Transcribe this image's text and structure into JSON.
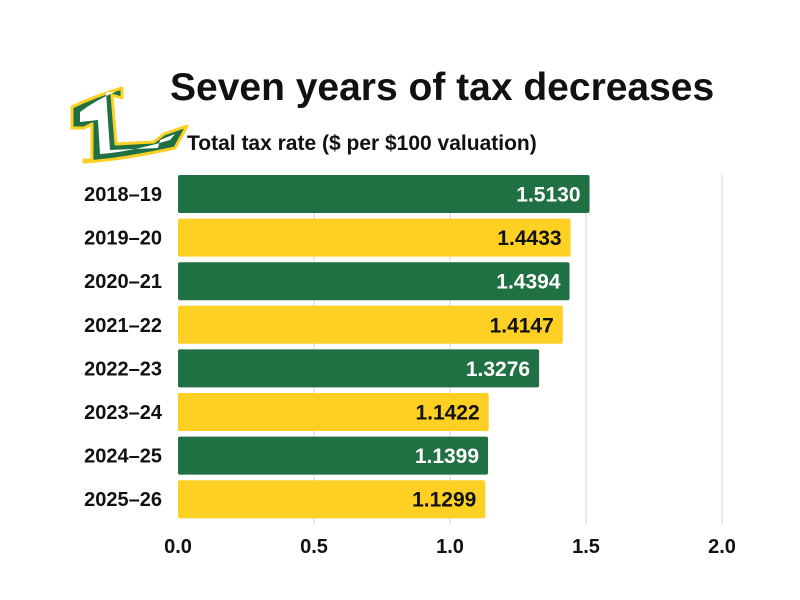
{
  "colors": {
    "green": "#1f7042",
    "yellow": "#fdd023",
    "grid": "#e2e2e2",
    "text_on_green": "#ffffff",
    "text_on_yellow": "#111111"
  },
  "chart_data": {
    "type": "bar",
    "orientation": "horizontal",
    "title": "Seven years of tax decreases",
    "subtitle": "Total tax rate ($ per $100 valuation)",
    "categories": [
      "2018–19",
      "2019–20",
      "2020–21",
      "2021–22",
      "2022–23",
      "2023–24",
      "2024–25",
      "2025–26"
    ],
    "values": [
      1.513,
      1.4433,
      1.4394,
      1.4147,
      1.3276,
      1.1422,
      1.1399,
      1.1299
    ],
    "data_labels": [
      "1.5130",
      "1.4433",
      "1.4394",
      "1.4147",
      "1.3276",
      "1.1422",
      "1.1399",
      "1.1299"
    ],
    "bar_colors": [
      "green",
      "yellow",
      "green",
      "yellow",
      "green",
      "yellow",
      "green",
      "yellow"
    ],
    "xlim": [
      0,
      2.0
    ],
    "xticks": [
      0,
      0.5,
      1.0,
      1.5,
      2.0
    ],
    "xtick_labels": [
      "0.0",
      "0.5",
      "1.0",
      "1.5",
      "2.0"
    ],
    "xlabel": "",
    "ylabel": "",
    "grid": true,
    "legend": "none"
  },
  "logo": {
    "letter": "L"
  }
}
